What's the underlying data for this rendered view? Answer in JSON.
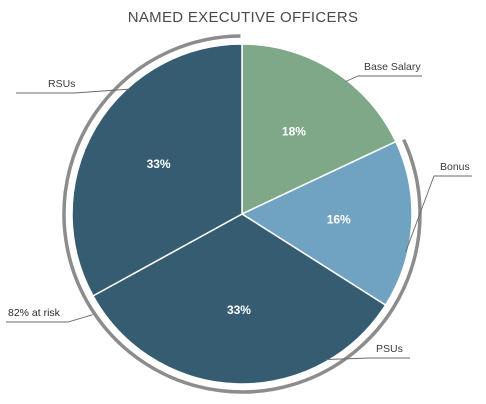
{
  "chart_data": {
    "type": "pie",
    "title": "NAMED EXECUTIVE OFFICERS",
    "categories": [
      "Base Salary",
      "Bonus",
      "PSUs",
      "RSUs"
    ],
    "values": [
      18,
      16,
      33,
      33
    ],
    "data_labels": [
      "18%",
      "16%",
      "33%",
      "33%"
    ],
    "colors": [
      "#7ea887",
      "#6fa3c1",
      "#365c71",
      "#365c71"
    ],
    "bracket_annotation": "82% at risk",
    "bracket_covers": [
      "Bonus",
      "PSUs",
      "RSUs"
    ]
  }
}
